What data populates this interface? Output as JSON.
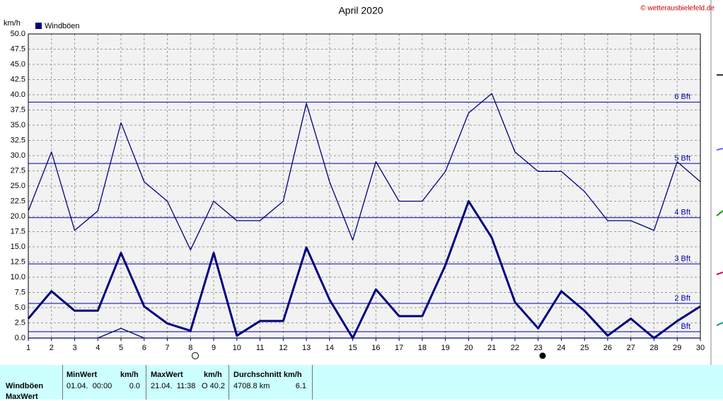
{
  "chart_data": {
    "type": "line",
    "title": "April 2020",
    "y_unit": "km/h",
    "credit": "© wetterausbielefeld.de",
    "categories": [
      "1",
      "2",
      "3",
      "4",
      "5",
      "6",
      "7",
      "8",
      "9",
      "10",
      "11",
      "12",
      "13",
      "14",
      "15",
      "16",
      "17",
      "18",
      "19",
      "20",
      "21",
      "22",
      "23",
      "24",
      "25",
      "26",
      "27",
      "28",
      "29",
      "30"
    ],
    "series": [
      {
        "name": "Windböen",
        "color": "#000080",
        "width": 1.3,
        "values": [
          20.9,
          30.6,
          17.7,
          20.9,
          35.4,
          25.7,
          22.5,
          14.5,
          22.5,
          19.3,
          19.3,
          22.5,
          38.6,
          25.7,
          16.1,
          29.0,
          22.5,
          22.5,
          27.4,
          37.0,
          40.2,
          30.6,
          27.4,
          27.4,
          24.1,
          19.3,
          19.3,
          17.7,
          29.0,
          25.7
        ]
      },
      {
        "color": "#000080",
        "width": 3,
        "values": [
          3.2,
          7.7,
          4.5,
          4.5,
          14.0,
          5.2,
          2.4,
          1.2,
          14.0,
          0.4,
          2.8,
          2.8,
          14.9,
          6.3,
          0.0,
          8.0,
          3.6,
          3.6,
          12.0,
          22.5,
          16.5,
          5.9,
          1.6,
          7.7,
          4.5,
          0.4,
          3.2,
          0.0,
          2.8,
          5.2
        ]
      },
      {
        "color": "#000080",
        "width": 1.3,
        "values": [
          0,
          0,
          0,
          0,
          1.6,
          0,
          0,
          0,
          0,
          0,
          0,
          0,
          0,
          0,
          0,
          0,
          0,
          0,
          0,
          0,
          0,
          0,
          0,
          0,
          0,
          0,
          0,
          0,
          0,
          0
        ]
      }
    ],
    "ylim": [
      0,
      50
    ],
    "yticks": [
      {
        "value": 0,
        "label": "0.0"
      },
      {
        "value": 2.5,
        "label": "2.5"
      },
      {
        "value": 5,
        "label": "5.0"
      },
      {
        "value": 7.5,
        "label": "7.5"
      },
      {
        "value": 10,
        "label": "10.0"
      },
      {
        "value": 12.5,
        "label": "12.5"
      },
      {
        "value": 15,
        "label": "15.0"
      },
      {
        "value": 17.5,
        "label": "17.5"
      },
      {
        "value": 20,
        "label": "20.0"
      },
      {
        "value": 22.5,
        "label": "22.5"
      },
      {
        "value": 25,
        "label": "25.0"
      },
      {
        "value": 27.5,
        "label": "27.5"
      },
      {
        "value": 30,
        "label": "30.0"
      },
      {
        "value": 32.5,
        "label": "32.5"
      },
      {
        "value": 35,
        "label": "35.0"
      },
      {
        "value": 37.5,
        "label": "37.5"
      },
      {
        "value": 40,
        "label": "40.0"
      },
      {
        "value": 42.5,
        "label": "42.5"
      },
      {
        "value": 45,
        "label": "45.0"
      },
      {
        "value": 47.5,
        "label": "47.5"
      },
      {
        "value": 50,
        "label": "50.0"
      }
    ],
    "grid": true,
    "reference_lines": [
      {
        "value": 1.05,
        "label": "Bft"
      },
      {
        "value": 5.7,
        "label": "2 Bft"
      },
      {
        "value": 12.2,
        "label": "3 Bft"
      },
      {
        "value": 19.8,
        "label": "4 Bft"
      },
      {
        "value": 28.7,
        "label": "5 Bft"
      },
      {
        "value": 38.8,
        "label": "6 Bft"
      }
    ],
    "reference_color": "#0000aa"
  },
  "stats_table": {
    "headers": [
      "MinWert",
      "km/h",
      "MaxWert",
      "km/h",
      "Durchschnitt km/h"
    ],
    "rows": [
      [
        "Windböen",
        "01.04.  00:00",
        "0.0",
        "21.04.  11:38",
        "O 40.2",
        "4708.8 km",
        "6.1"
      ],
      [
        "MaxWert"
      ]
    ]
  }
}
